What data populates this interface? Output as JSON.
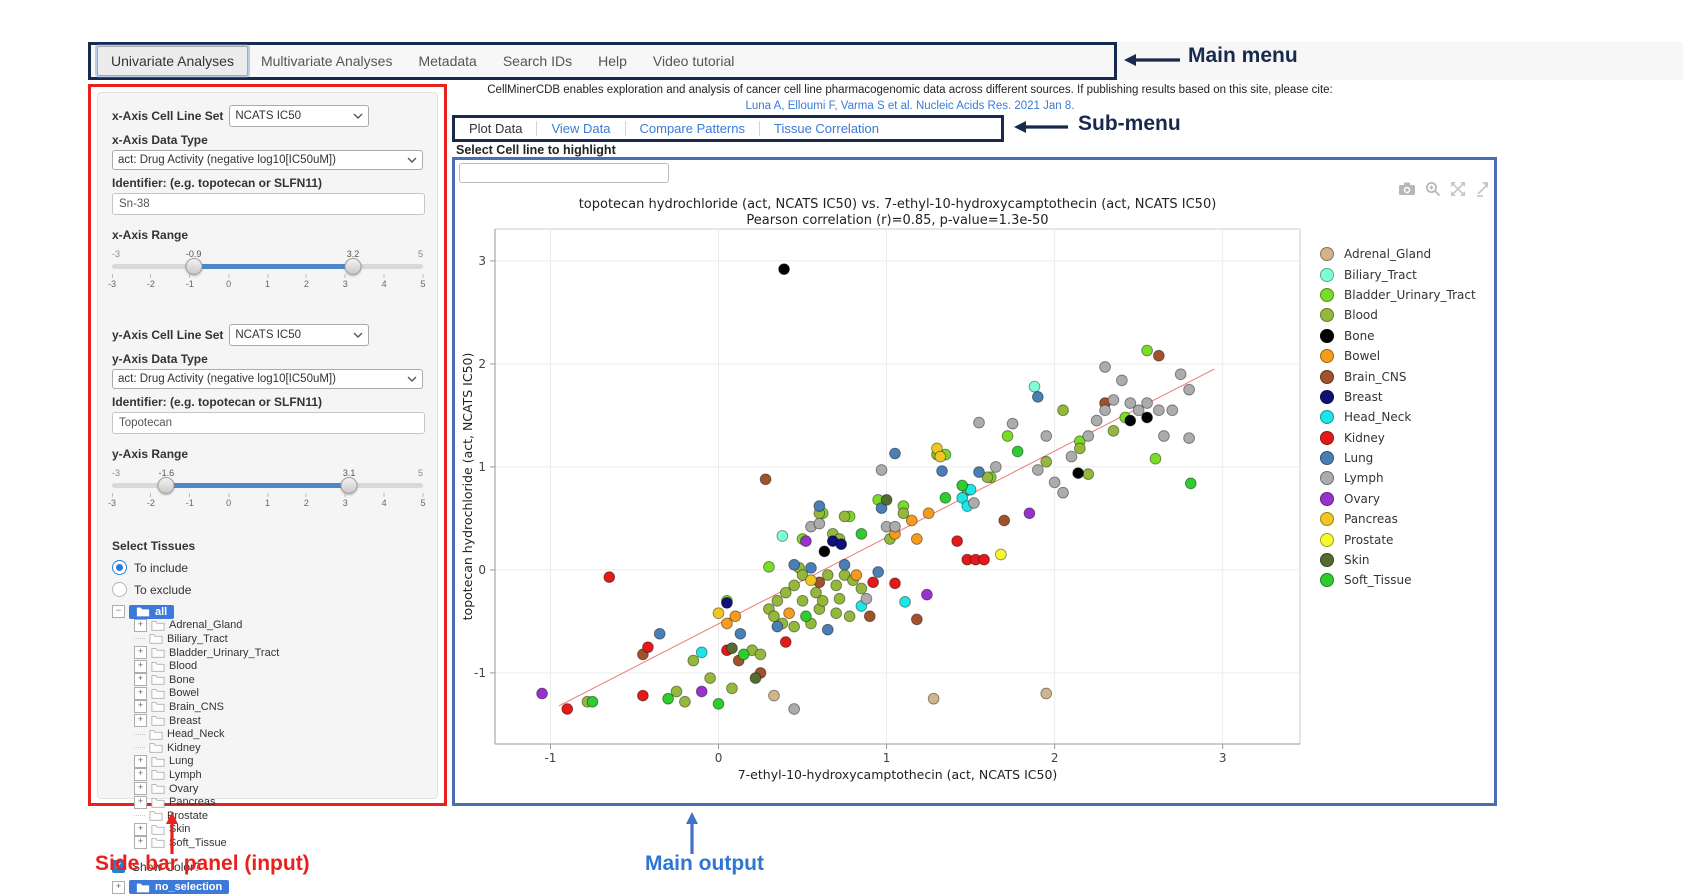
{
  "annotations": {
    "main_menu": "Main menu",
    "sub_menu": "Sub-menu",
    "sidebar": "Side bar panel (input)",
    "main_output": "Main output"
  },
  "main_menu": {
    "items": [
      {
        "label": "Univariate Analyses",
        "selected": true
      },
      {
        "label": "Multivariate Analyses",
        "selected": false
      },
      {
        "label": "Metadata",
        "selected": false
      },
      {
        "label": "Search IDs",
        "selected": false
      },
      {
        "label": "Help",
        "selected": false
      },
      {
        "label": "Video tutorial",
        "selected": false
      }
    ]
  },
  "header": {
    "description": "CellMinerCDB enables exploration and analysis of cancer cell line pharmacogenomic data across different sources. If publishing results based on this site, please cite:",
    "citation": "Luna A, Elloumi F, Varma S et al. Nucleic Acids Res. 2021 Jan 8."
  },
  "sub_menu": {
    "items": [
      "Plot Data",
      "View Data",
      "Compare Patterns",
      "Tissue Correlation"
    ]
  },
  "highlight": {
    "label": "Select Cell line to highlight",
    "value": ""
  },
  "sidebar": {
    "x_cell_line_set": {
      "label": "x-Axis Cell Line Set",
      "value": "NCATS IC50"
    },
    "x_data_type": {
      "label": "x-Axis Data Type",
      "value": "act: Drug Activity (negative log10[IC50uM])"
    },
    "x_identifier": {
      "label": "Identifier: (e.g. topotecan or SLFN11)",
      "value": "Sn-38"
    },
    "x_range": {
      "label": "x-Axis Range",
      "min": -3,
      "max": 5,
      "from": -0.9,
      "to": 3.2,
      "ticks": [
        -3,
        -2,
        -1,
        0,
        1,
        2,
        3,
        4,
        5
      ]
    },
    "y_cell_line_set": {
      "label": "y-Axis Cell Line Set",
      "value": "NCATS IC50"
    },
    "y_data_type": {
      "label": "y-Axis Data Type",
      "value": "act: Drug Activity (negative log10[IC50uM])"
    },
    "y_identifier": {
      "label": "Identifier: (e.g. topotecan or SLFN11)",
      "value": "Topotecan"
    },
    "y_range": {
      "label": "y-Axis Range",
      "min": -3,
      "max": 5,
      "from": -1.6,
      "to": 3.1,
      "ticks": [
        -3,
        -2,
        -1,
        0,
        1,
        2,
        3,
        4,
        5
      ]
    },
    "select_tissues": {
      "label": "Select Tissues",
      "options": [
        {
          "label": "To include",
          "checked": true
        },
        {
          "label": "To exclude",
          "checked": false
        }
      ],
      "root": "all",
      "items": [
        {
          "label": "Adrenal_Gland",
          "expandable": true
        },
        {
          "label": "Biliary_Tract",
          "expandable": false
        },
        {
          "label": "Bladder_Urinary_Tract",
          "expandable": true
        },
        {
          "label": "Blood",
          "expandable": true
        },
        {
          "label": "Bone",
          "expandable": true
        },
        {
          "label": "Bowel",
          "expandable": true
        },
        {
          "label": "Brain_CNS",
          "expandable": true
        },
        {
          "label": "Breast",
          "expandable": true
        },
        {
          "label": "Head_Neck",
          "expandable": false
        },
        {
          "label": "Kidney",
          "expandable": false
        },
        {
          "label": "Lung",
          "expandable": true
        },
        {
          "label": "Lymph",
          "expandable": true
        },
        {
          "label": "Ovary",
          "expandable": true
        },
        {
          "label": "Pancreas",
          "expandable": true
        },
        {
          "label": "Prostate",
          "expandable": false
        },
        {
          "label": "Skin",
          "expandable": true
        },
        {
          "label": "Soft_Tissue",
          "expandable": true
        }
      ]
    },
    "show_color": {
      "label": "Show Color?",
      "checked": true
    },
    "no_selection": {
      "label": "no_selection"
    }
  },
  "modebar_icons": [
    "camera",
    "zoom-in",
    "autoscale",
    "reset-axes"
  ],
  "chart_data": {
    "type": "scatter",
    "title": "topotecan hydrochloride (act, NCATS IC50) vs. 7-ethyl-10-hydroxycamptothecin (act, NCATS IC50)",
    "subtitle": "Pearson correlation (r)=0.85, p-value=1.3e-50",
    "xlabel": "7-ethyl-10-hydroxycamptothecin (act, NCATS IC50)",
    "ylabel": "topotecan hydrochloride (act, NCATS IC50)",
    "xlim": [
      -1.33,
      3.46
    ],
    "ylim": [
      -1.69,
      3.31
    ],
    "xticks": [
      -1,
      0,
      1,
      2,
      3
    ],
    "yticks": [
      -1,
      0,
      1,
      2,
      3
    ],
    "grid": true,
    "legend_position": "right",
    "regression_line": {
      "x1": -0.95,
      "y1": -1.32,
      "x2": 2.95,
      "y2": 1.95,
      "color": "#ee7a74"
    },
    "series": [
      {
        "name": "Adrenal_Gland",
        "color": "#D2B48C",
        "points": [
          [
            0.33,
            -1.22
          ],
          [
            1.28,
            -1.25
          ],
          [
            1.95,
            -1.2
          ]
        ]
      },
      {
        "name": "Biliary_Tract",
        "color": "#7FFFD4",
        "points": [
          [
            0.38,
            0.33
          ],
          [
            1.88,
            1.78
          ]
        ]
      },
      {
        "name": "Bladder_Urinary_Tract",
        "color": "#7ADB29",
        "points": [
          [
            0.05,
            -0.3
          ],
          [
            0.3,
            0.03
          ],
          [
            0.5,
            0.3
          ],
          [
            0.62,
            0.55
          ],
          [
            0.78,
            0.52
          ],
          [
            0.95,
            0.68
          ],
          [
            1.1,
            0.62
          ],
          [
            1.35,
            1.12
          ],
          [
            1.62,
            0.9
          ],
          [
            1.72,
            1.3
          ],
          [
            2.15,
            1.25
          ],
          [
            2.55,
            2.13
          ],
          [
            2.42,
            1.48
          ],
          [
            2.6,
            1.08
          ]
        ]
      },
      {
        "name": "Blood",
        "color": "#94B83C",
        "points": [
          [
            -0.78,
            -1.28
          ],
          [
            -0.25,
            -1.18
          ],
          [
            -0.2,
            -1.28
          ],
          [
            -0.15,
            -0.88
          ],
          [
            -0.05,
            -1.05
          ],
          [
            0.08,
            -1.15
          ],
          [
            0.2,
            -0.78
          ],
          [
            0.25,
            -0.82
          ],
          [
            0.3,
            -0.38
          ],
          [
            0.33,
            -0.45
          ],
          [
            0.35,
            -0.3
          ],
          [
            0.38,
            -0.52
          ],
          [
            0.4,
            -0.22
          ],
          [
            0.45,
            -0.55
          ],
          [
            0.45,
            -0.15
          ],
          [
            0.48,
            0.02
          ],
          [
            0.5,
            -0.3
          ],
          [
            0.5,
            -0.05
          ],
          [
            0.55,
            -0.52
          ],
          [
            0.58,
            -0.22
          ],
          [
            0.6,
            -0.38
          ],
          [
            0.62,
            -0.3
          ],
          [
            0.65,
            -0.05
          ],
          [
            0.7,
            -0.42
          ],
          [
            0.7,
            -0.15
          ],
          [
            0.72,
            -0.28
          ],
          [
            0.75,
            -0.05
          ],
          [
            0.78,
            -0.45
          ],
          [
            0.8,
            -0.1
          ],
          [
            0.85,
            -0.18
          ],
          [
            0.68,
            0.35
          ],
          [
            0.72,
            0.3
          ],
          [
            0.75,
            0.52
          ],
          [
            0.6,
            0.55
          ],
          [
            1.02,
            0.3
          ],
          [
            1.1,
            0.55
          ],
          [
            1.3,
            1.12
          ],
          [
            1.48,
            0.78
          ],
          [
            1.6,
            0.9
          ],
          [
            1.95,
            1.05
          ],
          [
            2.05,
            1.55
          ],
          [
            2.15,
            1.18
          ],
          [
            2.35,
            1.35
          ],
          [
            2.2,
            0.93
          ]
        ]
      },
      {
        "name": "Bone",
        "color": "#000000",
        "points": [
          [
            0.39,
            2.92
          ],
          [
            0.63,
            0.18
          ],
          [
            2.14,
            0.94
          ],
          [
            2.45,
            1.45
          ],
          [
            2.55,
            1.48
          ]
        ]
      },
      {
        "name": "Bowel",
        "color": "#F59B1D",
        "points": [
          [
            0.05,
            -0.52
          ],
          [
            0.1,
            -0.45
          ],
          [
            0.42,
            -0.42
          ],
          [
            0.82,
            -0.05
          ],
          [
            1.05,
            0.35
          ],
          [
            1.15,
            0.48
          ],
          [
            1.18,
            0.3
          ],
          [
            1.25,
            0.55
          ]
        ]
      },
      {
        "name": "Brain_CNS",
        "color": "#A0522D",
        "points": [
          [
            -0.45,
            -0.82
          ],
          [
            0.12,
            -0.88
          ],
          [
            0.25,
            -1.0
          ],
          [
            0.28,
            0.88
          ],
          [
            0.6,
            -0.12
          ],
          [
            0.9,
            -0.45
          ],
          [
            1.18,
            -0.48
          ],
          [
            1.7,
            0.48
          ],
          [
            2.3,
            1.62
          ],
          [
            2.62,
            2.08
          ]
        ]
      },
      {
        "name": "Breast",
        "color": "#101078",
        "points": [
          [
            0.05,
            -0.32
          ],
          [
            0.68,
            0.28
          ],
          [
            0.73,
            0.25
          ]
        ]
      },
      {
        "name": "Head_Neck",
        "color": "#1CE6E6",
        "points": [
          [
            -0.1,
            -0.8
          ],
          [
            0.85,
            -0.35
          ],
          [
            1.11,
            -0.31
          ],
          [
            1.45,
            0.7
          ],
          [
            1.5,
            0.78
          ],
          [
            1.48,
            0.62
          ]
        ]
      },
      {
        "name": "Kidney",
        "color": "#E41A1A",
        "points": [
          [
            -0.9,
            -1.35
          ],
          [
            -0.65,
            -0.07
          ],
          [
            -0.45,
            -1.22
          ],
          [
            -0.42,
            -0.75
          ],
          [
            0.05,
            -0.78
          ],
          [
            0.4,
            -0.7
          ],
          [
            0.92,
            -0.12
          ],
          [
            1.05,
            -0.13
          ],
          [
            1.42,
            0.28
          ],
          [
            1.48,
            0.1
          ],
          [
            1.53,
            0.1
          ],
          [
            1.58,
            0.1
          ]
        ]
      },
      {
        "name": "Lung",
        "color": "#4A7FB5",
        "points": [
          [
            -0.35,
            -0.62
          ],
          [
            0.13,
            -0.62
          ],
          [
            0.35,
            -0.55
          ],
          [
            0.45,
            0.05
          ],
          [
            0.55,
            0.02
          ],
          [
            0.6,
            0.62
          ],
          [
            0.65,
            -0.58
          ],
          [
            0.75,
            0.05
          ],
          [
            0.95,
            -0.02
          ],
          [
            0.97,
            0.6
          ],
          [
            1.05,
            1.13
          ],
          [
            1.33,
            0.96
          ],
          [
            1.55,
            0.95
          ],
          [
            1.9,
            1.68
          ]
        ]
      },
      {
        "name": "Lymph",
        "color": "#ACACAC",
        "points": [
          [
            0.45,
            -1.35
          ],
          [
            0.55,
            0.42
          ],
          [
            0.6,
            0.45
          ],
          [
            0.88,
            -0.28
          ],
          [
            0.97,
            0.97
          ],
          [
            1.0,
            0.42
          ],
          [
            1.05,
            0.42
          ],
          [
            1.52,
            0.65
          ],
          [
            1.55,
            1.43
          ],
          [
            1.65,
            1.0
          ],
          [
            1.75,
            1.42
          ],
          [
            1.9,
            0.97
          ],
          [
            1.95,
            1.3
          ],
          [
            2.0,
            0.85
          ],
          [
            2.05,
            0.75
          ],
          [
            2.1,
            1.1
          ],
          [
            2.2,
            1.3
          ],
          [
            2.25,
            1.45
          ],
          [
            2.3,
            1.55
          ],
          [
            2.3,
            1.97
          ],
          [
            2.35,
            1.65
          ],
          [
            2.4,
            1.84
          ],
          [
            2.45,
            1.62
          ],
          [
            2.5,
            1.55
          ],
          [
            2.55,
            1.62
          ],
          [
            2.62,
            1.55
          ],
          [
            2.65,
            1.3
          ],
          [
            2.7,
            1.55
          ],
          [
            2.75,
            1.9
          ],
          [
            2.8,
            1.75
          ],
          [
            2.8,
            1.28
          ]
        ]
      },
      {
        "name": "Ovary",
        "color": "#9932CC",
        "points": [
          [
            -1.05,
            -1.2
          ],
          [
            -0.1,
            -1.18
          ],
          [
            0.52,
            0.28
          ],
          [
            1.24,
            -0.24
          ],
          [
            1.85,
            0.55
          ]
        ]
      },
      {
        "name": "Pancreas",
        "color": "#EFC722",
        "points": [
          [
            0.0,
            -0.42
          ],
          [
            0.55,
            -0.1
          ],
          [
            1.3,
            1.18
          ],
          [
            1.32,
            1.1
          ]
        ]
      },
      {
        "name": "Prostate",
        "color": "#F7F72E",
        "points": [
          [
            1.68,
            0.15
          ]
        ]
      },
      {
        "name": "Skin",
        "color": "#556B2F",
        "points": [
          [
            0.08,
            -0.76
          ],
          [
            0.22,
            -1.05
          ],
          [
            1.0,
            0.68
          ]
        ]
      },
      {
        "name": "Soft_Tissue",
        "color": "#2FCC2F",
        "points": [
          [
            -0.75,
            -1.28
          ],
          [
            -0.3,
            -1.25
          ],
          [
            0.0,
            -1.3
          ],
          [
            0.15,
            -0.82
          ],
          [
            0.52,
            -0.45
          ],
          [
            0.85,
            0.35
          ],
          [
            1.35,
            0.7
          ],
          [
            1.45,
            0.82
          ],
          [
            1.78,
            1.15
          ],
          [
            2.81,
            0.84
          ]
        ]
      }
    ]
  }
}
